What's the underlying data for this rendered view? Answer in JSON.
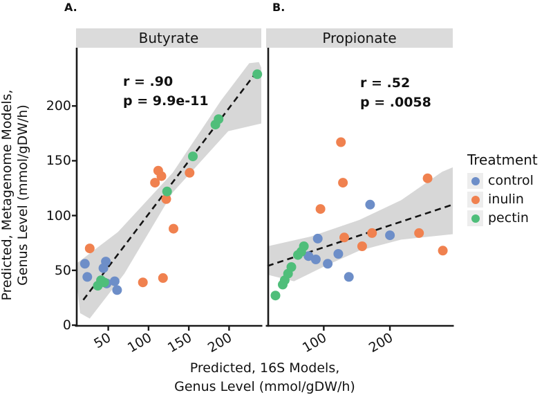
{
  "figure": {
    "panel_a_label": "A.",
    "panel_b_label": "B.",
    "x_axis_title_line1": "Predicted, 16S Models,",
    "x_axis_title_line2": "Genus Level (mmol/gDW/h)",
    "y_axis_title_line1": "Predicted, Metagenome Models,",
    "y_axis_title_line2": "Genus Level (mmol/gDW/h)"
  },
  "legend": {
    "title": "Treatment",
    "position": "right",
    "items": [
      {
        "label": "control",
        "color": "#6d8ec8"
      },
      {
        "label": "inulin",
        "color": "#f0814f"
      },
      {
        "label": "pectin",
        "color": "#4fbe7a"
      }
    ]
  },
  "colors": {
    "strip_background": "#dbdbdb",
    "confidence_band": "#d3d3d3",
    "regression_line": "#141414",
    "axis": "#1a1a1a"
  },
  "chart_data": [
    {
      "type": "scatter",
      "title": "Butyrate",
      "annotation": {
        "r": "r = .90",
        "p": "p = 9.9e-11"
      },
      "xlabel": "Predicted, 16S Models, Genus Level (mmol/gDW/h)",
      "ylabel": "Predicted, Metagenome Models, Genus Level (mmol/gDW/h)",
      "xlim": [
        10,
        240
      ],
      "ylim": [
        0,
        250
      ],
      "x_ticks": [
        50,
        100,
        150,
        200
      ],
      "y_ticks": [
        0,
        50,
        100,
        150,
        200
      ],
      "grid": false,
      "series": [
        {
          "name": "control",
          "color": "#6d8ec8",
          "points": [
            [
              21,
              56
            ],
            [
              47,
              58
            ],
            [
              44,
              52
            ],
            [
              24,
              44
            ],
            [
              48,
              38
            ],
            [
              58,
              40
            ],
            [
              61,
              32
            ]
          ]
        },
        {
          "name": "inulin",
          "color": "#f0814f",
          "points": [
            [
              27,
              70
            ],
            [
              93,
              39
            ],
            [
              118,
              43
            ],
            [
              122,
              115
            ],
            [
              108,
              130
            ],
            [
              112,
              141
            ],
            [
              116,
              136
            ],
            [
              151,
              139
            ],
            [
              131,
              88
            ]
          ]
        },
        {
          "name": "pectin",
          "color": "#4fbe7a",
          "points": [
            [
              37,
              36
            ],
            [
              41,
              41
            ],
            [
              45,
              39
            ],
            [
              123,
              122
            ],
            [
              155,
              154
            ],
            [
              183,
              183
            ],
            [
              187,
              188
            ],
            [
              235,
              229
            ]
          ]
        }
      ],
      "regression_line": {
        "style": "dashed",
        "start": [
          19,
          23
        ],
        "end": [
          235,
          232
        ]
      },
      "confidence_band": [
        [
          12,
          57
        ],
        [
          62,
          85
        ],
        [
          130,
          139
        ],
        [
          190,
          205
        ],
        [
          225,
          239
        ],
        [
          237,
          240
        ],
        [
          240,
          235
        ],
        [
          240,
          184
        ],
        [
          199,
          177
        ],
        [
          130,
          121
        ],
        [
          70,
          47
        ],
        [
          27,
          6
        ],
        [
          15,
          11
        ],
        [
          12,
          32
        ]
      ]
    },
    {
      "type": "scatter",
      "title": "Propionate",
      "annotation": {
        "r": "r = .52",
        "p": "p = .0058"
      },
      "xlabel": "Predicted, 16S Models, Genus Level (mmol/gDW/h)",
      "ylabel": "Predicted, Metagenome Models, Genus Level (mmol/gDW/h)",
      "xlim": [
        15,
        295
      ],
      "ylim": [
        0,
        250
      ],
      "x_ticks": [
        100,
        200
      ],
      "y_ticks": [],
      "grid": false,
      "series": [
        {
          "name": "control",
          "color": "#6d8ec8",
          "points": [
            [
              77,
              63
            ],
            [
              88,
              60
            ],
            [
              91,
              79
            ],
            [
              106,
              56
            ],
            [
              122,
              65
            ],
            [
              138,
              44
            ],
            [
              170,
              110
            ],
            [
              200,
              82
            ]
          ]
        },
        {
          "name": "inulin",
          "color": "#f0814f",
          "points": [
            [
              95,
              106
            ],
            [
              126,
              167
            ],
            [
              129,
              130
            ],
            [
              131,
              80
            ],
            [
              158,
              72
            ],
            [
              173,
              84
            ],
            [
              244,
              84
            ],
            [
              257,
              134
            ],
            [
              280,
              68
            ]
          ]
        },
        {
          "name": "pectin",
          "color": "#4fbe7a",
          "points": [
            [
              27,
              27
            ],
            [
              38,
              37
            ],
            [
              41,
              41
            ],
            [
              46,
              47
            ],
            [
              51,
              53
            ],
            [
              61,
              64
            ],
            [
              66,
              67
            ],
            [
              70,
              72
            ]
          ]
        }
      ],
      "regression_line": {
        "style": "dashed",
        "start": [
          15,
          54
        ],
        "end": [
          295,
          110
        ]
      },
      "confidence_band": [
        [
          15,
          72
        ],
        [
          81,
          81
        ],
        [
          154,
          96
        ],
        [
          217,
          114
        ],
        [
          279,
          140
        ],
        [
          295,
          144
        ],
        [
          295,
          83
        ],
        [
          217,
          78
        ],
        [
          154,
          68
        ],
        [
          102,
          54
        ],
        [
          55,
          40
        ],
        [
          15,
          46
        ]
      ]
    }
  ]
}
